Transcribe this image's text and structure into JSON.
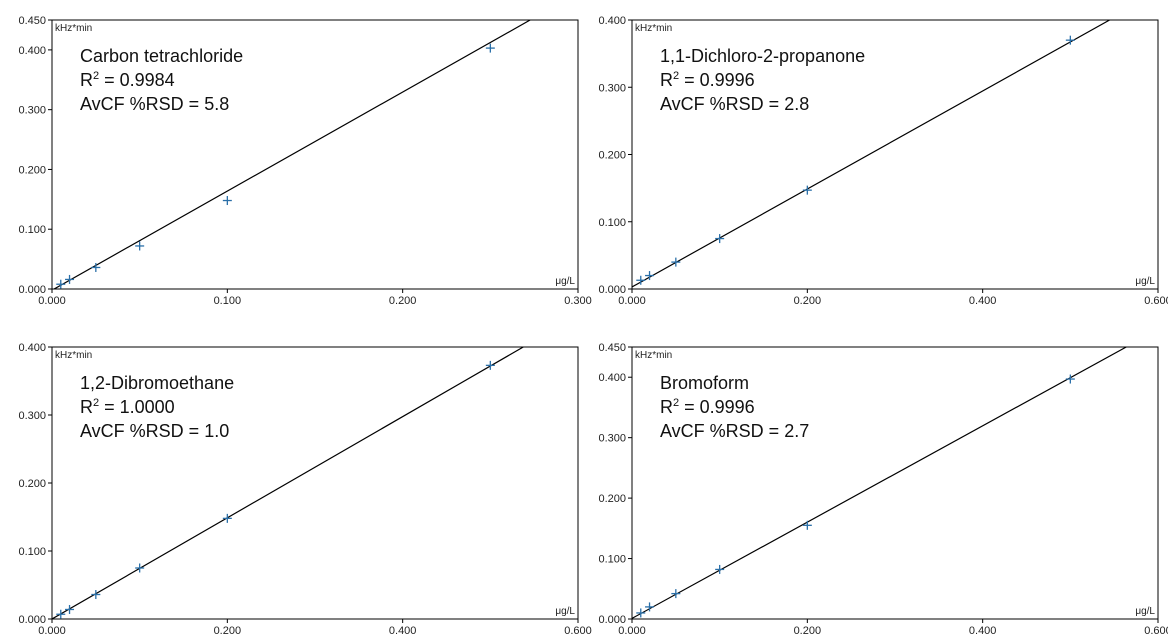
{
  "chart_data": [
    {
      "type": "scatter",
      "annotation": {
        "compound": "Carbon tetrachloride",
        "r2_label": "R",
        "r2_sup": "2",
        "r2_value": " = 0.9984",
        "rsd": "AvCF %RSD = 5.8"
      },
      "ylabel": "kHz*min",
      "xlabel": "μg/L",
      "xlim": [
        0,
        0.3
      ],
      "ylim": [
        0,
        0.45
      ],
      "x_ticks": [
        "0.000",
        "0.100",
        "0.200",
        "0.300"
      ],
      "y_ticks": [
        "0.000",
        "0.100",
        "0.200",
        "0.300",
        "0.400",
        "0.450"
      ],
      "points": [
        {
          "x": 0.005,
          "y": 0.008
        },
        {
          "x": 0.01,
          "y": 0.016
        },
        {
          "x": 0.025,
          "y": 0.036
        },
        {
          "x": 0.05,
          "y": 0.072
        },
        {
          "x": 0.1,
          "y": 0.148
        },
        {
          "x": 0.25,
          "y": 0.403
        }
      ],
      "fit_line": [
        {
          "x": 0,
          "y": -0.002
        },
        {
          "x": 0.2727,
          "y": 0.45
        }
      ],
      "grid": false,
      "colors": {
        "points": "#2a6fa8",
        "line": "#000000"
      }
    },
    {
      "type": "scatter",
      "annotation": {
        "compound": "1,1-Dichloro-2-propanone",
        "r2_label": "R",
        "r2_sup": "2",
        "r2_value": " = 0.9996",
        "rsd": "AvCF %RSD = 2.8"
      },
      "ylabel": "kHz*min",
      "xlabel": "μg/L",
      "xlim": [
        0,
        0.6
      ],
      "ylim": [
        0,
        0.4
      ],
      "x_ticks": [
        "0.000",
        "0.200",
        "0.400",
        "0.600"
      ],
      "y_ticks": [
        "0.000",
        "0.100",
        "0.200",
        "0.300",
        "0.400"
      ],
      "points": [
        {
          "x": 0.01,
          "y": 0.013
        },
        {
          "x": 0.02,
          "y": 0.02
        },
        {
          "x": 0.05,
          "y": 0.04
        },
        {
          "x": 0.1,
          "y": 0.075
        },
        {
          "x": 0.2,
          "y": 0.147
        },
        {
          "x": 0.5,
          "y": 0.37
        }
      ],
      "fit_line": [
        {
          "x": 0,
          "y": 0.003
        },
        {
          "x": 0.5448,
          "y": 0.4
        }
      ],
      "grid": false,
      "colors": {
        "points": "#2a6fa8",
        "line": "#000000"
      }
    },
    {
      "type": "scatter",
      "annotation": {
        "compound": "1,2-Dibromoethane",
        "r2_label": "R",
        "r2_sup": "2",
        "r2_value": " = 1.0000",
        "rsd": "AvCF %RSD = 1.0"
      },
      "ylabel": "kHz*min",
      "xlabel": "μg/L",
      "xlim": [
        0,
        0.6
      ],
      "ylim": [
        0,
        0.4
      ],
      "x_ticks": [
        "0.000",
        "0.200",
        "0.400",
        "0.600"
      ],
      "y_ticks": [
        "0.000",
        "0.100",
        "0.200",
        "0.300",
        "0.400"
      ],
      "points": [
        {
          "x": 0.01,
          "y": 0.007
        },
        {
          "x": 0.02,
          "y": 0.014
        },
        {
          "x": 0.05,
          "y": 0.036
        },
        {
          "x": 0.1,
          "y": 0.075
        },
        {
          "x": 0.2,
          "y": 0.148
        },
        {
          "x": 0.5,
          "y": 0.373
        }
      ],
      "fit_line": [
        {
          "x": 0,
          "y": 0.0
        },
        {
          "x": 0.5376,
          "y": 0.4
        }
      ],
      "grid": false,
      "colors": {
        "points": "#2a6fa8",
        "line": "#000000"
      }
    },
    {
      "type": "scatter",
      "annotation": {
        "compound": "Bromoform",
        "r2_label": "R",
        "r2_sup": "2",
        "r2_value": " = 0.9996",
        "rsd": "AvCF %RSD = 2.7"
      },
      "ylabel": "kHz*min",
      "xlabel": "μg/L",
      "xlim": [
        0,
        0.6
      ],
      "ylim": [
        0,
        0.45
      ],
      "x_ticks": [
        "0.000",
        "0.200",
        "0.400",
        "0.600"
      ],
      "y_ticks": [
        "0.000",
        "0.100",
        "0.200",
        "0.300",
        "0.400",
        "0.450"
      ],
      "points": [
        {
          "x": 0.01,
          "y": 0.01
        },
        {
          "x": 0.02,
          "y": 0.02
        },
        {
          "x": 0.05,
          "y": 0.042
        },
        {
          "x": 0.1,
          "y": 0.082
        },
        {
          "x": 0.2,
          "y": 0.155
        },
        {
          "x": 0.5,
          "y": 0.397
        }
      ],
      "fit_line": [
        {
          "x": 0,
          "y": 0.001
        },
        {
          "x": 0.5638,
          "y": 0.45
        }
      ],
      "grid": false,
      "colors": {
        "points": "#2a6fa8",
        "line": "#000000"
      }
    }
  ]
}
